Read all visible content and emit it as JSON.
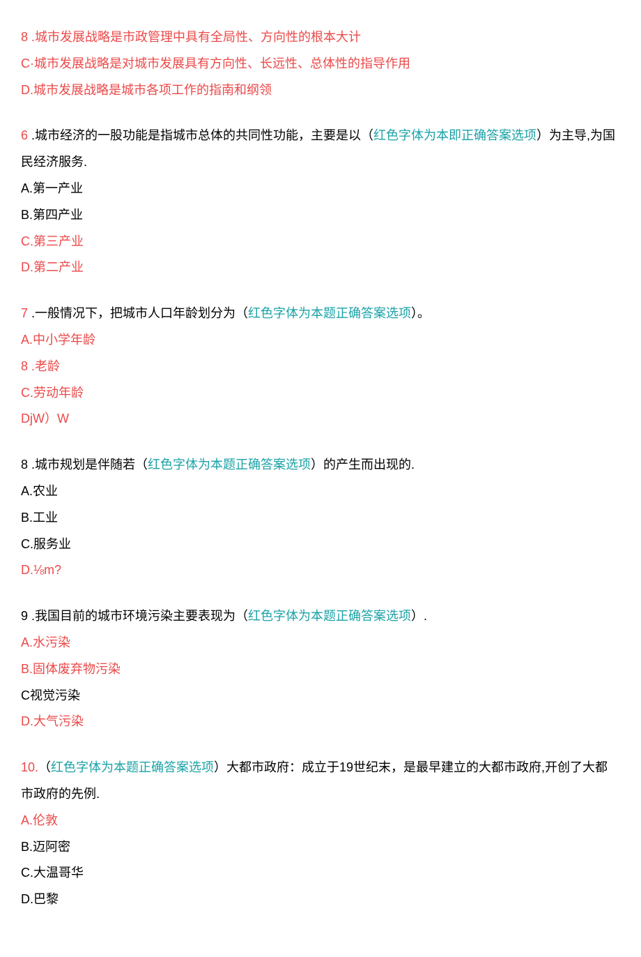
{
  "colors": {
    "red": "#ec4949",
    "teal": "#1ba2a7",
    "black": "#000000",
    "background": "#ffffff"
  },
  "typography": {
    "font_size": 18,
    "line_height": 2.1,
    "font_family": "Microsoft YaHei, SimSun, sans-serif"
  },
  "q5_tail": {
    "b": "8 .城市发展战略是市政管理中具有全局性、方向性的根本大计",
    "c": "C·城市发展战略是对城市发展具有方向性、长远性、总体性的指导作用",
    "d": "D.城市发展战略是城市各项工作的指南和纲领"
  },
  "q6": {
    "num": "6",
    "stem1": " .城市经济的一股功能是指城市总体的共同性功能，主要是以（",
    "hint": "红色字体为本即正确答案选项",
    "stem2": "）为主导,为国民经济服务.",
    "a": "A.第一产业",
    "b": "B.第四产业",
    "c": "C.第三产业",
    "d": "D.第二产业"
  },
  "q7": {
    "num": "7",
    "stem1": " .一般情况下，把城市人口年龄划分为（",
    "hint": "红色字体为本题正确答案选项",
    "stem2": "）。",
    "a": "A.中小学年龄",
    "b": "8 .老龄",
    "c": "C.劳动年龄",
    "d": "DjW）W"
  },
  "q8": {
    "num": "8",
    "stem1": " .城市规划是伴随若（",
    "hint": "红色字体为本题正确答案选项",
    "stem2": "）的产生而出现的.",
    "a": "A.农业",
    "b": "B.工业",
    "c": "C.服务业",
    "d": "D.⅛m?"
  },
  "q9": {
    "num": "9",
    "stem1": " .我国目前的城市环境污染主要表现为（",
    "hint": "红色字体为本题正确答案选项",
    "stem2": "）.",
    "a": "A.水污染",
    "b": "B.固体废弃物污染",
    "c": "C视觉污染",
    "d": "D.大气污染"
  },
  "q10": {
    "num": "10.",
    "stem1": "（",
    "hint": "红色字体为本题正确答案选项",
    "stem2": "）大都市政府：成立于19世纪末，是最早建立的大都市政府,开创了大都市政府的先例.",
    "a": "A.伦敦",
    "b": "B.迈阿密",
    "c": "C.大温哥华",
    "d": "D.巴黎"
  }
}
